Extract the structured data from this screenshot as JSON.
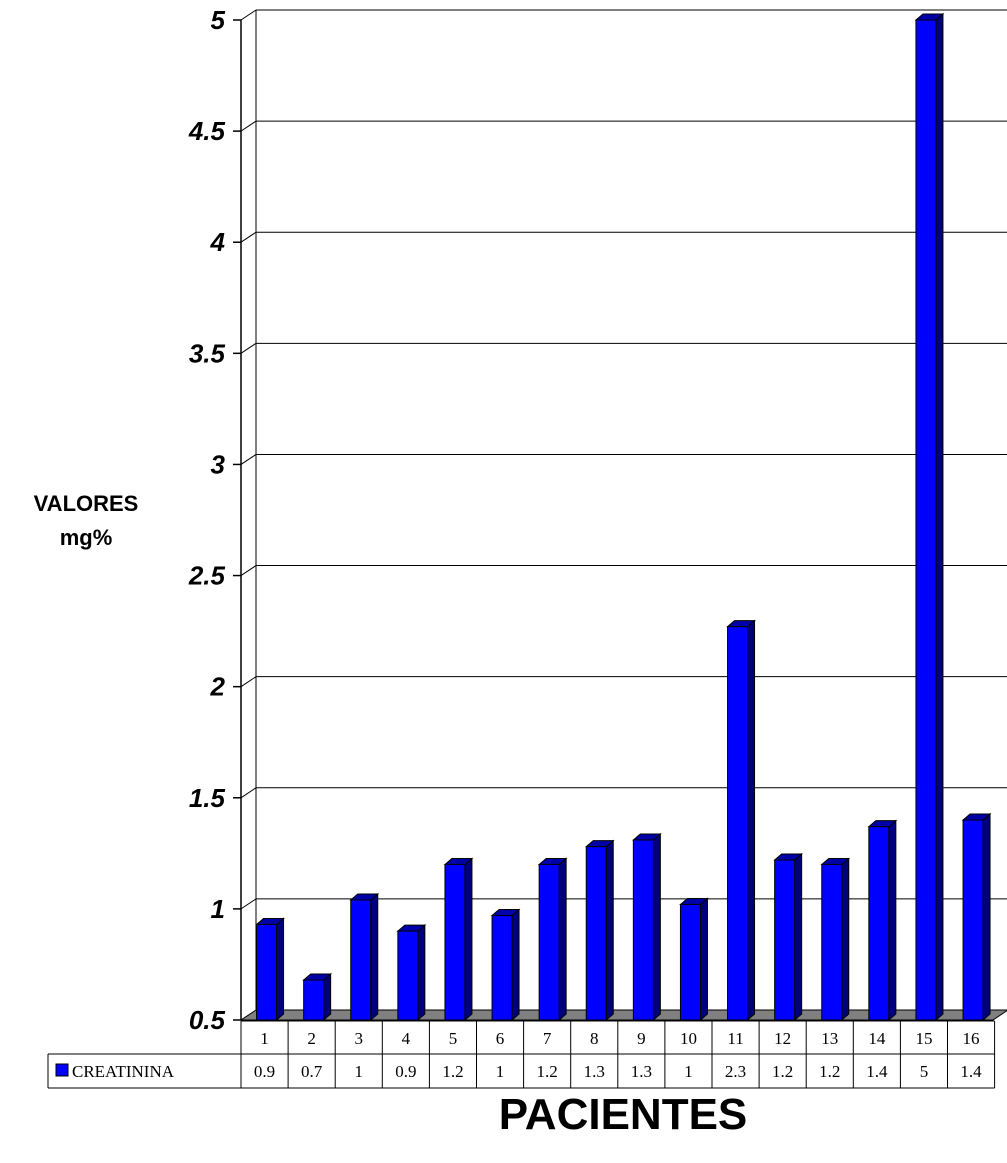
{
  "chart_data": {
    "type": "bar",
    "ylabel": [
      "VALORES",
      "mg%"
    ],
    "xlabel": "PACIENTES",
    "ylim": [
      0.5,
      5
    ],
    "yticks": [
      0.5,
      1,
      1.5,
      2,
      2.5,
      3,
      3.5,
      4,
      4.5,
      5
    ],
    "ytick_labels": [
      "0.5",
      "1",
      "1.5",
      "2",
      "2.5",
      "3",
      "3.5",
      "4",
      "4.5",
      "5"
    ],
    "grid": true,
    "categories": [
      "1",
      "2",
      "3",
      "4",
      "5",
      "6",
      "7",
      "8",
      "9",
      "10",
      "11",
      "12",
      "13",
      "14",
      "15",
      "16"
    ],
    "series": [
      {
        "name": "CREATININA",
        "color": "#0000ff",
        "values": [
          0.93,
          0.68,
          1.04,
          0.9,
          1.2,
          0.97,
          1.2,
          1.28,
          1.31,
          1.02,
          2.27,
          1.22,
          1.2,
          1.37,
          5.0,
          1.4
        ],
        "table_labels": [
          "0.9",
          "0.7",
          "1",
          "0.9",
          "1.2",
          "1",
          "1.2",
          "1.3",
          "1.3",
          "1",
          "2.3",
          "1.2",
          "1.2",
          "1.4",
          "5",
          "1.4"
        ]
      }
    ]
  }
}
